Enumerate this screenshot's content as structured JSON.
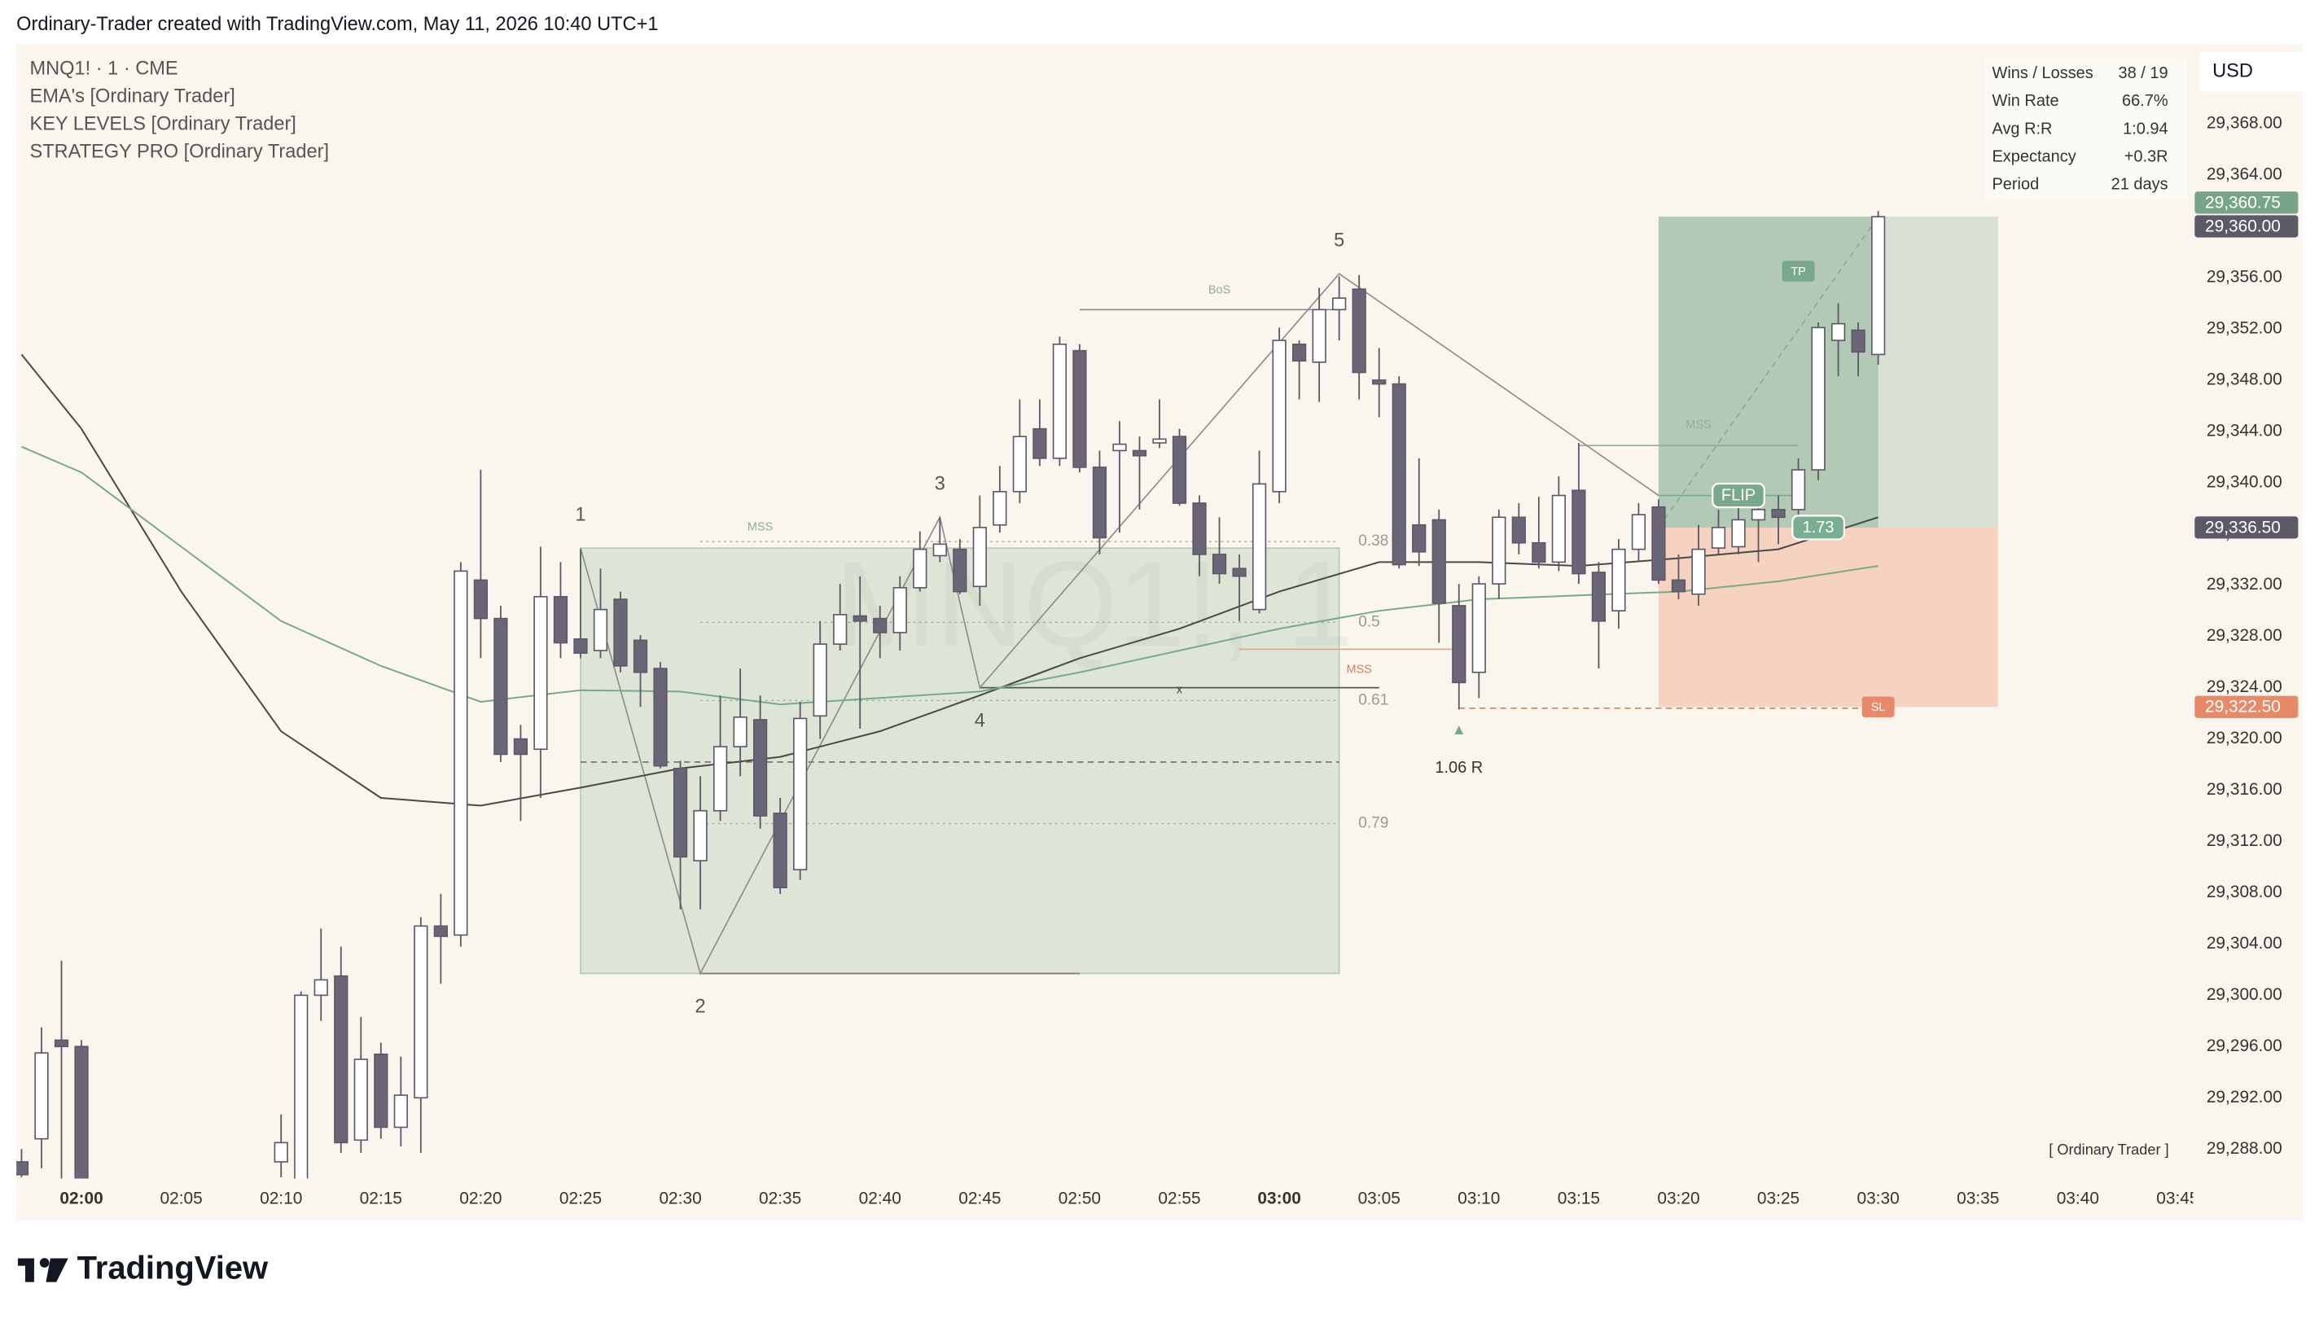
{
  "header": "Ordinary-Trader created with TradingView.com, May 11, 2026 10:40 UTC+1",
  "brand": "TradingView",
  "chart_data": {
    "type": "candlestick",
    "legend": [
      "MNQ1! · 1 · CME",
      "EMA's [Ordinary Trader]",
      "KEY LEVELS [Ordinary Trader]",
      "STRATEGY PRO [Ordinary Trader]"
    ],
    "watermark": "MNQ1!, 1",
    "currency": "USD",
    "signature": "[ Ordinary Trader ]",
    "xlim": [
      "01:57",
      "03:46"
    ],
    "ylim": [
      29285.7,
      29374.2
    ],
    "xticks": [
      "02:00",
      "02:05",
      "02:10",
      "02:15",
      "02:20",
      "02:25",
      "02:30",
      "02:35",
      "02:40",
      "02:45",
      "02:50",
      "02:55",
      "03:00",
      "03:05",
      "03:10",
      "03:15",
      "03:20",
      "03:25",
      "03:30",
      "03:35",
      "03:40",
      "03:45"
    ],
    "yticks": [
      {
        "value": 29368,
        "label": "29,368.00"
      },
      {
        "value": 29364,
        "label": "29,364.00"
      },
      {
        "value": 29360,
        "label": "29,360.00"
      },
      {
        "value": 29356,
        "label": "29,356.00"
      },
      {
        "value": 29352,
        "label": "29,352.00"
      },
      {
        "value": 29348,
        "label": "29,348.00"
      },
      {
        "value": 29344,
        "label": "29,344.00"
      },
      {
        "value": 29340,
        "label": "29,340.00"
      },
      {
        "value": 29336,
        "label": "29,336.00"
      },
      {
        "value": 29332,
        "label": "29,332.00"
      },
      {
        "value": 29328,
        "label": "29,328.00"
      },
      {
        "value": 29324,
        "label": "29,324.00"
      },
      {
        "value": 29320,
        "label": "29,320.00"
      },
      {
        "value": 29316,
        "label": "29,316.00"
      },
      {
        "value": 29312,
        "label": "29,312.00"
      },
      {
        "value": 29308,
        "label": "29,308.00"
      },
      {
        "value": 29304,
        "label": "29,304.00"
      },
      {
        "value": 29300,
        "label": "29,300.00"
      },
      {
        "value": 29296,
        "label": "29,296.00"
      },
      {
        "value": 29292,
        "label": "29,292.00"
      },
      {
        "value": 29288,
        "label": "29,288.00"
      }
    ],
    "grid": false,
    "candles": {
      "x": [
        "01:57",
        "01:58",
        "01:59",
        "02:00",
        "02:10",
        "02:11",
        "02:12",
        "02:13",
        "02:14",
        "02:15",
        "02:16",
        "02:17",
        "02:18",
        "02:19",
        "02:20",
        "02:21",
        "02:22",
        "02:23",
        "02:24",
        "02:25",
        "02:26",
        "02:27",
        "02:28",
        "02:29",
        "02:30",
        "02:31",
        "02:32",
        "02:33",
        "02:34",
        "02:35",
        "02:36",
        "02:37",
        "02:38",
        "02:39",
        "02:40",
        "02:41",
        "02:42",
        "02:43",
        "02:44",
        "02:45",
        "02:46",
        "02:47",
        "02:48",
        "02:49",
        "02:50",
        "02:51",
        "02:52",
        "02:53",
        "02:54",
        "02:55",
        "02:56",
        "02:57",
        "02:58",
        "02:59",
        "03:00",
        "03:01",
        "03:02",
        "03:03",
        "03:04",
        "03:05",
        "03:06",
        "03:07",
        "03:08",
        "03:09",
        "03:10",
        "03:11",
        "03:12",
        "03:13",
        "03:14",
        "03:15",
        "03:16",
        "03:17",
        "03:18",
        "03:19",
        "03:20",
        "03:21",
        "03:22",
        "03:23",
        "03:24",
        "03:25",
        "03:26",
        "03:27",
        "03:28",
        "03:29",
        "03:30"
      ],
      "open": [
        29287,
        29288.8,
        29296.5,
        29296,
        29287,
        29285,
        29300,
        29301.5,
        29288.7,
        29295.4,
        29289.7,
        29292,
        29305.4,
        29304.7,
        29332.4,
        29329.4,
        29320,
        29319.2,
        29331.1,
        29327.8,
        29326.9,
        29330.9,
        29327.7,
        29325.5,
        29317.7,
        29310.5,
        29314.4,
        29319.4,
        29321.5,
        29314.2,
        29309.8,
        29321.8,
        29327.4,
        29329.6,
        29329.4,
        29328.3,
        29331.8,
        29334.3,
        29334.8,
        29331.9,
        29336.7,
        29339.3,
        29344.2,
        29341.9,
        29350.3,
        29341.2,
        29342.5,
        29342.5,
        29343.1,
        29343.6,
        29338.4,
        29334.4,
        29333.3,
        29330.1,
        29339.3,
        29350.8,
        29349.4,
        29353.5,
        29355.1,
        29348,
        29347.7,
        29336.7,
        29337.1,
        29330.4,
        29325.2,
        29332.1,
        29337.3,
        29335.3,
        29333.8,
        29339.4,
        29333,
        29330,
        29334.8,
        29338.1,
        29332.4,
        29331.3,
        29334.9,
        29335,
        29337.1,
        29337.9,
        29337.9,
        29341,
        29351.1,
        29351.9,
        29350
      ],
      "high": [
        29288,
        29297.5,
        29302.7,
        29296.5,
        29290.7,
        29300.3,
        29305.2,
        29303.8,
        29298.3,
        29296.3,
        29295.2,
        29306.1,
        29307.9,
        29333.8,
        29341,
        29330.4,
        29321.1,
        29335,
        29333.8,
        29334.8,
        29333.3,
        29331.5,
        29328.1,
        29326,
        29318.3,
        29317.1,
        29323.4,
        29325.5,
        29323.4,
        29315.4,
        29322.9,
        29329.2,
        29332.1,
        29332.7,
        29330.4,
        29332.7,
        29336.2,
        29337.3,
        29335.6,
        29339,
        29341.3,
        29346.5,
        29346.5,
        29351.4,
        29350.8,
        29342.5,
        29344.8,
        29343.6,
        29346.5,
        29344.2,
        29339,
        29337.3,
        29334.4,
        29342.5,
        29352.1,
        29351.1,
        29355.2,
        29356.1,
        29356.2,
        29350.5,
        29348.3,
        29341.9,
        29337.9,
        29332.1,
        29332.7,
        29337.9,
        29338.4,
        29338.9,
        29340.5,
        29343.1,
        29333.8,
        29335.6,
        29338.4,
        29338.7,
        29334.4,
        29336.7,
        29337.9,
        29339,
        29338.7,
        29339,
        29341.9,
        29352.5,
        29354,
        29352.5,
        29361.2
      ],
      "low": [
        29285.8,
        29286.5,
        29285.3,
        29284,
        29285.8,
        29284,
        29298,
        29287.7,
        29287.7,
        29288.8,
        29288.2,
        29287.7,
        29300.9,
        29303.8,
        29326.3,
        29318.2,
        29313.6,
        29315.4,
        29326.3,
        29326.3,
        29326.3,
        29325.2,
        29322.5,
        29317.7,
        29306.7,
        29306.7,
        29313.6,
        29317.1,
        29313,
        29307.9,
        29309,
        29320,
        29326.9,
        29320.8,
        29326.3,
        29326.9,
        29331.5,
        29333.8,
        29331.3,
        29330.4,
        29336.1,
        29338.4,
        29341.3,
        29341.3,
        29340.8,
        29334.4,
        29336.1,
        29337.9,
        29342.7,
        29338.2,
        29332.7,
        29332.1,
        29329.2,
        29329.8,
        29338.4,
        29346.5,
        29346.3,
        29351.1,
        29346.5,
        29345.1,
        29333.3,
        29333.5,
        29327.5,
        29322.3,
        29323.2,
        29330.9,
        29334.4,
        29333.3,
        29333.1,
        29332.1,
        29325.5,
        29328.6,
        29333.8,
        29332.1,
        29330.9,
        29330.4,
        29334.4,
        29334.4,
        29333.8,
        29335.2,
        29337.3,
        29340.2,
        29348.3,
        29348.3,
        29349.2
      ],
      "close": [
        29286,
        29295.5,
        29296,
        29285,
        29288.5,
        29300,
        29301.2,
        29288.5,
        29295,
        29289.7,
        29292.2,
        29305.4,
        29304.6,
        29333.1,
        29329.4,
        29318.8,
        29318.8,
        29331.1,
        29327.5,
        29326.7,
        29330.1,
        29325.7,
        29325.2,
        29317.9,
        29310.8,
        29314.4,
        29319.4,
        29321.7,
        29314,
        29308.4,
        29321.6,
        29327.4,
        29329.7,
        29329.2,
        29328.3,
        29331.8,
        29334.8,
        29335.2,
        29331.5,
        29336.5,
        29339.3,
        29343.6,
        29341.9,
        29350.8,
        29341.2,
        29335.7,
        29343,
        29342.1,
        29343.4,
        29338.4,
        29334.4,
        29332.9,
        29332.7,
        29339.9,
        29351.1,
        29349.5,
        29353.5,
        29354.4,
        29348.6,
        29347.7,
        29333.6,
        29334.6,
        29330.6,
        29324.4,
        29332.1,
        29337.3,
        29335.3,
        29333.8,
        29339,
        29332.9,
        29329.2,
        29334.8,
        29337.5,
        29332.4,
        29331.5,
        29334.8,
        29336.5,
        29337.1,
        29337.9,
        29337.3,
        29341,
        29352.1,
        29352.4,
        29350.2,
        29360.75
      ],
      "up_color": "#ffffff",
      "down_color": "#6b6677",
      "edge_color": "#5c5866"
    },
    "series": [
      {
        "color": "#4a4848",
        "x": [
          "01:57",
          "02:00",
          "02:05",
          "02:10",
          "02:15",
          "02:20",
          "02:25",
          "02:30",
          "02:35",
          "02:40",
          "02:45",
          "02:50",
          "02:55",
          "03:00",
          "03:05",
          "03:10",
          "03:15",
          "03:20",
          "03:25",
          "03:30"
        ],
        "values": [
          29350,
          29344.2,
          29331.5,
          29320.6,
          29315.4,
          29314.8,
          29316.2,
          29317.7,
          29318.6,
          29320.6,
          29323.4,
          29326.3,
          29328.6,
          29331.5,
          29333.8,
          29333.8,
          29333.5,
          29334.1,
          29334.8,
          29337.3
        ]
      },
      {
        "color": "#7aa88a",
        "x": [
          "01:57",
          "02:00",
          "02:05",
          "02:10",
          "02:15",
          "02:20",
          "02:25",
          "02:30",
          "02:35",
          "02:40",
          "02:45",
          "02:50",
          "02:55",
          "03:00",
          "03:05",
          "03:10",
          "03:15",
          "03:20",
          "03:25",
          "03:30"
        ],
        "values": [
          29342.8,
          29340.8,
          29335,
          29329.2,
          29325.7,
          29322.9,
          29323.8,
          29323.7,
          29322.7,
          29323.2,
          29323.7,
          29325.2,
          29326.9,
          29328.6,
          29330,
          29330.9,
          29331.2,
          29331.5,
          29332.3,
          29333.5
        ]
      }
    ],
    "fib_box": {
      "from": "02:25",
      "to": "03:03",
      "top": 29334.9,
      "bottom": 29301.7,
      "levels": [
        {
          "level": 0.38,
          "price": 29335.4
        },
        {
          "level": 0.5,
          "price": 29329.1
        },
        {
          "level": 0.61,
          "price": 29323
        },
        {
          "level": 0.79,
          "price": 29313.4
        }
      ]
    },
    "position": {
      "from": "03:19",
      "to": "03:36",
      "entry": 29336.5,
      "target": 29360.75,
      "stop": 29322.5
    },
    "zigzag": {
      "x": [
        "02:25",
        "02:31",
        "02:43",
        "02:45",
        "03:03",
        "03:19"
      ],
      "values": [
        29334.9,
        29301.7,
        29337.3,
        29324,
        29356.3,
        29339
      ],
      "labels": [
        "1",
        "2",
        "3",
        "4",
        "5",
        null
      ]
    },
    "lines": [
      {
        "from": "02:50",
        "to": "03:03",
        "price": 29353.5,
        "style": "solid",
        "color": "#8a8a8a"
      },
      {
        "from": "02:25",
        "to": "03:03",
        "price": 29318.2,
        "style": "dashed",
        "color": "#6e6e6e"
      },
      {
        "from": "02:31",
        "to": "02:50",
        "price": 29301.7,
        "style": "solid",
        "color": "#7a7a7a"
      },
      {
        "from": "02:45",
        "to": "03:05",
        "price": 29324,
        "style": "solid",
        "color": "#555555"
      },
      {
        "from": "02:58",
        "to": "03:09",
        "price": 29327,
        "style": "solid",
        "color": "#e8a080"
      },
      {
        "from": "03:15",
        "to": "03:26",
        "price": 29342.9,
        "style": "solid",
        "color": "#8fae9a"
      },
      {
        "from": "03:19",
        "to": "03:26",
        "price": 29339,
        "style": "solid",
        "color": "#7aa88e"
      },
      {
        "from": "03:09",
        "to": "03:30",
        "price": 29322.4,
        "style": "dashed",
        "color": "#e07a5a"
      }
    ],
    "notes": [
      {
        "text": "BoS",
        "time": "02:57",
        "price": 29355,
        "color": "#8fae9a"
      },
      {
        "text": "MSS",
        "time": "02:34",
        "price": 29336.5,
        "color": "#8fae9a"
      },
      {
        "text": "MSS",
        "time": "03:21",
        "price": 29344.5,
        "color": "#8fae9a"
      },
      {
        "text": "MSS",
        "time": "03:04",
        "price": 29325.4,
        "color": "#e07a5a"
      },
      {
        "text": "x",
        "time": "02:55",
        "price": 29323.8,
        "color": "#444444"
      },
      {
        "text": "1.06 R",
        "time": "03:09",
        "price": 29317.7,
        "color": "#333333"
      }
    ],
    "tags": [
      {
        "text": "TP",
        "time": "03:26",
        "price": 29356.5,
        "color": "#7aa88e"
      },
      {
        "text": "FLIP",
        "time": "03:23",
        "price": 29339,
        "color": "#7aa88e"
      },
      {
        "text": "SL",
        "time": "03:30",
        "price": 29322.5,
        "color": "#e8896a"
      },
      {
        "text": "1.73",
        "time": "03:27",
        "price": 29336.5,
        "color": "#7aae93"
      }
    ],
    "badges": [
      {
        "value": 29360,
        "label": "29,360.00",
        "color": "#5d5a68"
      },
      {
        "value": 29360.75,
        "label": "29,360.75",
        "color": "#78a48a"
      },
      {
        "value": 29336.5,
        "label": "29,336.50",
        "color": "#5d5a68"
      },
      {
        "value": 29322.5,
        "label": "29,322.50",
        "color": "#e8896a"
      }
    ],
    "stats": [
      [
        "Wins / Losses",
        "38 / 19"
      ],
      [
        "Win Rate",
        "66.7%"
      ],
      [
        "Avg R:R",
        "1:0.94"
      ],
      [
        "Expectancy",
        "+0.3R"
      ],
      [
        "Period",
        "21 days"
      ]
    ]
  }
}
